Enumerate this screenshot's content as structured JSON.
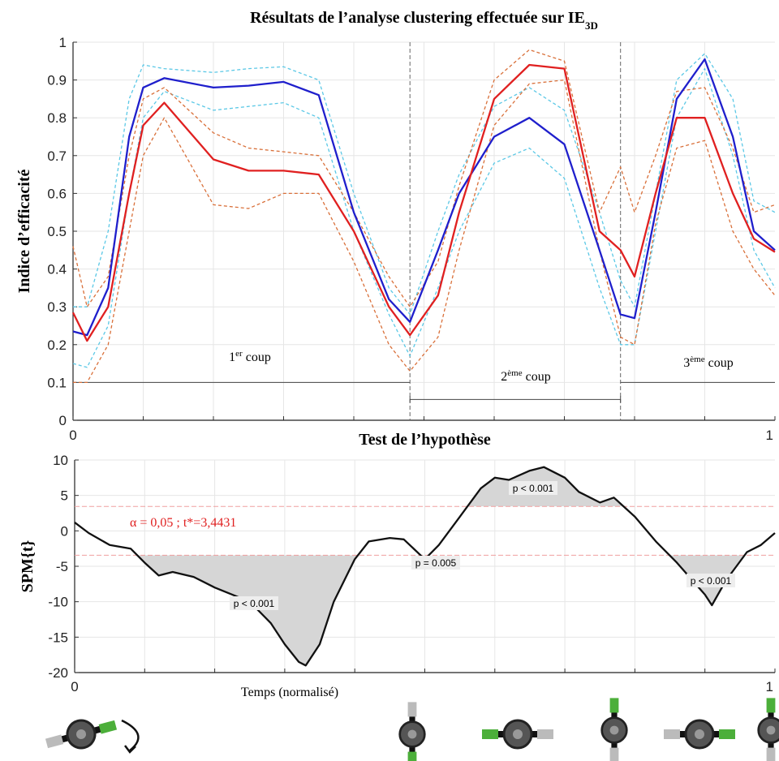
{
  "chart_data": [
    {
      "type": "line",
      "title": "Résultats de l’analyse clustering effectuée sur IE",
      "title_subscript": "3D",
      "ylabel": "Indice d’efficacité",
      "x": [
        0,
        0.02,
        0.05,
        0.08,
        0.1,
        0.13,
        0.2,
        0.25,
        0.3,
        0.35,
        0.4,
        0.45,
        0.48,
        0.52,
        0.55,
        0.6,
        0.65,
        0.7,
        0.75,
        0.78,
        0.8,
        0.83,
        0.86,
        0.9,
        0.94,
        0.97,
        1
      ],
      "series": [
        {
          "color": "#5bc8e6",
          "linestyle": "dashed",
          "values": [
            0.3,
            0.3,
            0.5,
            0.85,
            0.94,
            0.93,
            0.92,
            0.93,
            0.935,
            0.9,
            0.6,
            0.35,
            0.28,
            0.5,
            0.65,
            0.83,
            0.88,
            0.82,
            0.55,
            0.37,
            0.3,
            0.6,
            0.9,
            0.97,
            0.85,
            0.58,
            0.55
          ]
        },
        {
          "color": "#5bc8e6",
          "linestyle": "dashed",
          "values": [
            0.15,
            0.14,
            0.25,
            0.6,
            0.8,
            0.87,
            0.82,
            0.83,
            0.84,
            0.8,
            0.5,
            0.28,
            0.17,
            0.35,
            0.5,
            0.68,
            0.72,
            0.64,
            0.35,
            0.2,
            0.2,
            0.5,
            0.8,
            0.93,
            0.7,
            0.45,
            0.35
          ]
        },
        {
          "color": "#d9703a",
          "linestyle": "dashed",
          "values": [
            0.46,
            0.3,
            0.38,
            0.7,
            0.85,
            0.88,
            0.76,
            0.72,
            0.71,
            0.7,
            0.55,
            0.38,
            0.3,
            0.42,
            0.62,
            0.9,
            0.98,
            0.95,
            0.55,
            0.67,
            0.55,
            0.7,
            0.87,
            0.88,
            0.72,
            0.55,
            0.57
          ]
        },
        {
          "color": "#d9703a",
          "linestyle": "dashed",
          "values": [
            0.1,
            0.1,
            0.2,
            0.5,
            0.7,
            0.8,
            0.57,
            0.56,
            0.6,
            0.6,
            0.42,
            0.2,
            0.13,
            0.22,
            0.45,
            0.78,
            0.89,
            0.9,
            0.45,
            0.22,
            0.2,
            0.52,
            0.72,
            0.74,
            0.5,
            0.4,
            0.33
          ]
        },
        {
          "color": "#1f1fcc",
          "linestyle": "solid",
          "values": [
            0.235,
            0.225,
            0.35,
            0.75,
            0.88,
            0.905,
            0.88,
            0.885,
            0.895,
            0.86,
            0.55,
            0.32,
            0.26,
            0.45,
            0.6,
            0.75,
            0.8,
            0.73,
            0.45,
            0.28,
            0.27,
            0.55,
            0.85,
            0.955,
            0.75,
            0.5,
            0.45
          ]
        },
        {
          "color": "#e02020",
          "linestyle": "solid",
          "values": [
            0.285,
            0.21,
            0.3,
            0.6,
            0.78,
            0.84,
            0.69,
            0.66,
            0.66,
            0.65,
            0.5,
            0.3,
            0.225,
            0.33,
            0.55,
            0.85,
            0.94,
            0.93,
            0.5,
            0.45,
            0.38,
            0.6,
            0.8,
            0.8,
            0.6,
            0.48,
            0.445
          ]
        }
      ],
      "xlim": [
        0,
        1
      ],
      "ylim": [
        0,
        1
      ],
      "xticks": [
        0,
        1
      ],
      "xminorticks": [
        0.1,
        0.2,
        0.3,
        0.4,
        0.5,
        0.6,
        0.7,
        0.8,
        0.9
      ],
      "yticks": [
        0,
        0.1,
        0.2,
        0.3,
        0.4,
        0.5,
        0.6,
        0.7,
        0.8,
        0.9,
        1
      ],
      "grid": true,
      "phase_bounds": [
        0.48,
        0.78
      ],
      "phase_line_levels": [
        0.1,
        0.055,
        0.1
      ],
      "phase_labels": [
        [
          "1",
          "er",
          " coup"
        ],
        [
          "2",
          "ème",
          " coup"
        ],
        [
          "3",
          "ème",
          " coup"
        ]
      ]
    },
    {
      "type": "line",
      "title": "Test de l’hypothèse",
      "ylabel": "SPM{t}",
      "xlabel": "Temps (normalisé)",
      "x": [
        0,
        0.02,
        0.05,
        0.08,
        0.1,
        0.12,
        0.14,
        0.17,
        0.2,
        0.25,
        0.28,
        0.3,
        0.32,
        0.33,
        0.35,
        0.37,
        0.4,
        0.42,
        0.45,
        0.47,
        0.5,
        0.52,
        0.55,
        0.58,
        0.6,
        0.62,
        0.65,
        0.67,
        0.7,
        0.72,
        0.75,
        0.77,
        0.8,
        0.83,
        0.86,
        0.9,
        0.91,
        0.93,
        0.96,
        0.98,
        1
      ],
      "series": [
        {
          "color": "#111111",
          "linestyle": "solid",
          "values": [
            1.2,
            -0.3,
            -2,
            -2.5,
            -4.5,
            -6.3,
            -5.8,
            -6.5,
            -8,
            -10,
            -13,
            -16,
            -18.5,
            -19,
            -16,
            -10,
            -4,
            -1.5,
            -1,
            -1.2,
            -4,
            -2,
            2,
            6,
            7.5,
            7.2,
            8.5,
            9,
            7.5,
            5.5,
            4,
            4.7,
            2,
            -1.5,
            -4.5,
            -9,
            -10.5,
            -7,
            -3,
            -2,
            -0.3
          ]
        }
      ],
      "xlim": [
        0,
        1
      ],
      "ylim": [
        -20,
        10
      ],
      "xticks": [
        0,
        1
      ],
      "xminorticks": [
        0.1,
        0.2,
        0.3,
        0.4,
        0.5,
        0.6,
        0.7,
        0.8,
        0.9
      ],
      "yticks": [
        -20,
        -15,
        -10,
        -5,
        0,
        5,
        10
      ],
      "grid": true,
      "threshold": 3.4431,
      "threshold_label": "α = 0,05 ; t*=3,4431",
      "p_labels": [
        "p < 0.001",
        "p = 0.005",
        "p < 0.001",
        "p < 0.001"
      ]
    }
  ]
}
